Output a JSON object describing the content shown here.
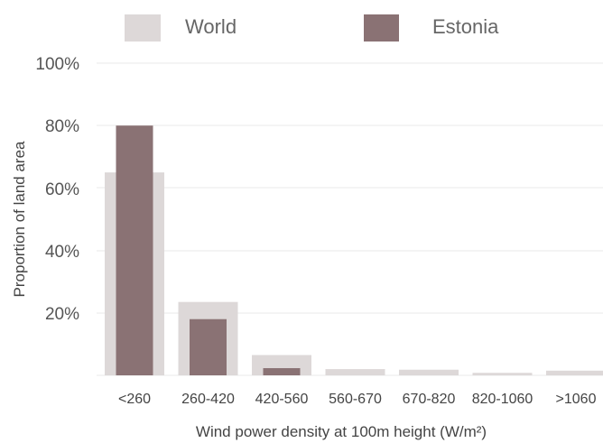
{
  "chart_data": {
    "type": "bar",
    "title": "",
    "xlabel": "Wind power density at 100m height (W/m²)",
    "ylabel": "Proportion of land area",
    "ylim": [
      0,
      100
    ],
    "yticks": [
      "20%",
      "40%",
      "60%",
      "80%",
      "100%"
    ],
    "grid": true,
    "legend_position": "top",
    "categories": [
      "<260",
      "260-420",
      "420-560",
      "560-670",
      "670-820",
      "820-1060",
      ">1060"
    ],
    "series": [
      {
        "name": "World",
        "color": "#ddd8d8",
        "values": [
          65,
          23.5,
          6.5,
          2,
          1.8,
          0.8,
          1.5
        ]
      },
      {
        "name": "Estonia",
        "color": "#8a7274",
        "values": [
          80,
          18,
          2.3,
          0,
          0,
          0,
          0
        ]
      }
    ]
  }
}
